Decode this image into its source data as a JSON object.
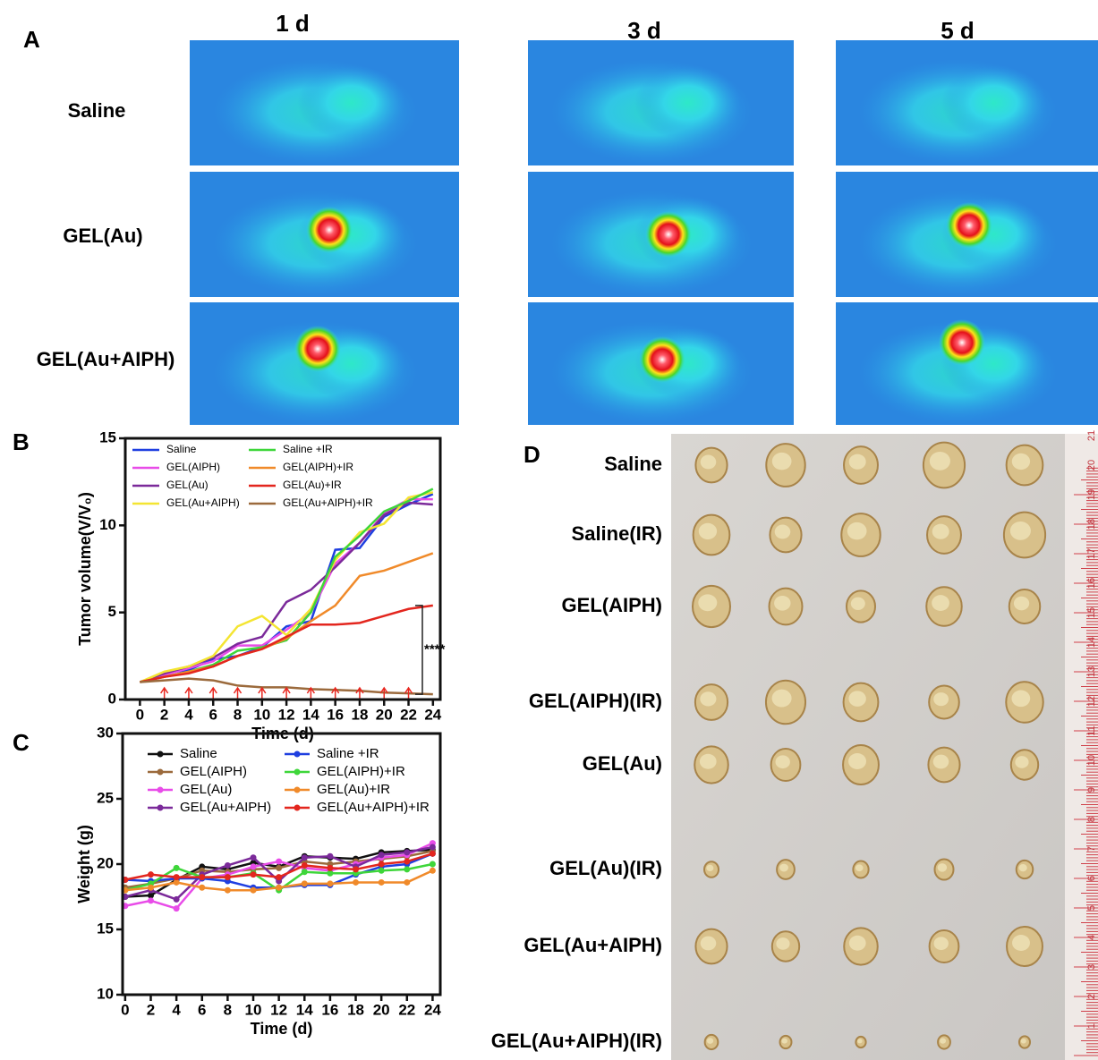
{
  "panel_a": {
    "label": "A",
    "columns": [
      "1 d",
      "3 d",
      "5 d"
    ],
    "rows": [
      "Saline",
      "GEL(Au)",
      "GEL(Au+AIPH)"
    ]
  },
  "panel_b": {
    "label": "B"
  },
  "panel_c": {
    "label": "C"
  },
  "panel_d": {
    "label": "D",
    "rows": [
      "Saline",
      "Saline(IR)",
      "GEL(AIPH)",
      "GEL(AIPH)(IR)",
      "GEL(Au)",
      "GEL(Au)(IR)",
      "GEL(Au+AIPH)",
      "GEL(Au+AIPH)(IR)"
    ],
    "ruler": [
      "1",
      "2",
      "3",
      "4",
      "5",
      "6",
      "7",
      "8",
      "9",
      "10",
      "11",
      "12",
      "13",
      "14",
      "15",
      "16",
      "17",
      "18",
      "19",
      "20",
      "21"
    ]
  },
  "chart_data": [
    {
      "type": "line",
      "x_label": "Time (d)",
      "y_label": "Tumor volume(V/V₀)",
      "x": [
        0,
        2,
        4,
        6,
        8,
        10,
        12,
        14,
        16,
        18,
        20,
        22,
        24
      ],
      "xlim": [
        -1.2,
        24.6
      ],
      "xticks": [
        0,
        2,
        4,
        6,
        8,
        10,
        12,
        14,
        16,
        18,
        20,
        22,
        24
      ],
      "ylim": [
        0,
        15
      ],
      "yticks": [
        0,
        5,
        10,
        15
      ],
      "markers": false,
      "ir_days": [
        2,
        4,
        6,
        8,
        10,
        12,
        14,
        16,
        18,
        20,
        22
      ],
      "ir_color": "#e8271f",
      "annotation": "****",
      "series": [
        {
          "name": "Saline",
          "color": "#1f3fe0",
          "values": [
            1,
            1.5,
            1.7,
            2.3,
            2.5,
            3.0,
            4.2,
            4.5,
            8.6,
            8.7,
            10.5,
            11.2,
            11.8
          ]
        },
        {
          "name": "GEL(AIPH)",
          "color": "#e84ce8",
          "values": [
            1,
            1.4,
            1.8,
            2.2,
            3.1,
            3.1,
            4.0,
            5.0,
            7.8,
            9.0,
            10.7,
            11.5,
            11.5
          ]
        },
        {
          "name": "GEL(Au)",
          "color": "#7b2a9a",
          "values": [
            1,
            1.5,
            1.9,
            2.4,
            3.2,
            3.6,
            5.6,
            6.3,
            7.6,
            9.0,
            10.6,
            11.3,
            11.2
          ]
        },
        {
          "name": "GEL(Au+AIPH)",
          "color": "#f4e532",
          "values": [
            1,
            1.6,
            1.9,
            2.5,
            4.2,
            4.8,
            3.7,
            5.2,
            8.0,
            9.6,
            10.1,
            11.6,
            11.9
          ]
        },
        {
          "name": "Saline +IR",
          "color": "#3ed63a",
          "values": [
            1,
            1.3,
            1.6,
            2.0,
            2.8,
            3.0,
            3.4,
            5.0,
            8.2,
            9.4,
            10.8,
            11.4,
            12.1
          ]
        },
        {
          "name": "GEL(AIPH)+IR",
          "color": "#f08a2a",
          "values": [
            1,
            1.3,
            1.6,
            1.9,
            2.5,
            2.9,
            3.5,
            4.5,
            5.4,
            7.1,
            7.4,
            7.9,
            8.4
          ]
        },
        {
          "name": "GEL(Au)+IR",
          "color": "#e3261e",
          "values": [
            1,
            1.3,
            1.5,
            1.9,
            2.5,
            2.9,
            3.6,
            4.3,
            4.3,
            4.4,
            4.8,
            5.2,
            5.4
          ]
        },
        {
          "name": "GEL(Au+AIPH)+IR",
          "color": "#9b6a3c",
          "values": [
            1,
            1.1,
            1.2,
            1.1,
            0.8,
            0.7,
            0.7,
            0.6,
            0.55,
            0.5,
            0.4,
            0.35,
            0.3
          ]
        }
      ]
    },
    {
      "type": "line",
      "x_label": "Time (d)",
      "y_label": "Weight  (g)",
      "x": [
        0,
        2,
        4,
        6,
        8,
        10,
        12,
        14,
        16,
        18,
        20,
        22,
        24
      ],
      "xlim": [
        -0.2,
        24.6
      ],
      "xticks": [
        0,
        2,
        4,
        6,
        8,
        10,
        12,
        14,
        16,
        18,
        20,
        22,
        24
      ],
      "ylim": [
        10,
        30
      ],
      "yticks": [
        10,
        15,
        20,
        25,
        30
      ],
      "markers": true,
      "series": [
        {
          "name": "Saline",
          "color": "#111111",
          "values": [
            17.5,
            17.6,
            18.8,
            19.8,
            19.6,
            20.1,
            19.8,
            20.6,
            20.5,
            20.4,
            20.9,
            21.0,
            21.1
          ]
        },
        {
          "name": "GEL(AIPH)",
          "color": "#9b6a3c",
          "values": [
            18.2,
            18.5,
            18.9,
            19.5,
            19.4,
            19.6,
            19.7,
            20.2,
            20.0,
            20.2,
            20.4,
            20.6,
            21.0
          ]
        },
        {
          "name": "GEL(Au)",
          "color": "#e84ce8",
          "values": [
            16.8,
            17.2,
            16.6,
            18.9,
            19.2,
            19.8,
            20.2,
            19.7,
            19.5,
            20.0,
            20.5,
            20.7,
            21.6
          ]
        },
        {
          "name": "GEL(Au+AIPH)",
          "color": "#7b2a9a",
          "values": [
            17.5,
            18.0,
            17.3,
            19.2,
            19.9,
            20.5,
            18.7,
            20.5,
            20.6,
            19.8,
            20.7,
            20.9,
            21.3
          ]
        },
        {
          "name": "Saline +IR",
          "color": "#1f3fe0",
          "values": [
            18.8,
            18.7,
            18.9,
            18.9,
            18.7,
            18.2,
            18.2,
            18.4,
            18.4,
            19.2,
            19.8,
            20.0,
            20.8
          ]
        },
        {
          "name": "GEL(AIPH)+IR",
          "color": "#3ed63a",
          "values": [
            18.0,
            18.5,
            19.7,
            19.0,
            19.0,
            19.3,
            18.0,
            19.4,
            19.3,
            19.3,
            19.5,
            19.6,
            20.0
          ]
        },
        {
          "name": "GEL(Au)+IR",
          "color": "#f08a2a",
          "values": [
            18.0,
            18.2,
            18.6,
            18.2,
            18.0,
            18.0,
            18.2,
            18.5,
            18.5,
            18.6,
            18.6,
            18.6,
            19.5
          ]
        },
        {
          "name": "GEL(Au+AIPH)+IR",
          "color": "#e3261e",
          "values": [
            18.8,
            19.2,
            19.0,
            19.0,
            19.0,
            19.2,
            19.0,
            19.9,
            19.7,
            19.6,
            20.0,
            20.2,
            20.8
          ]
        }
      ]
    }
  ]
}
